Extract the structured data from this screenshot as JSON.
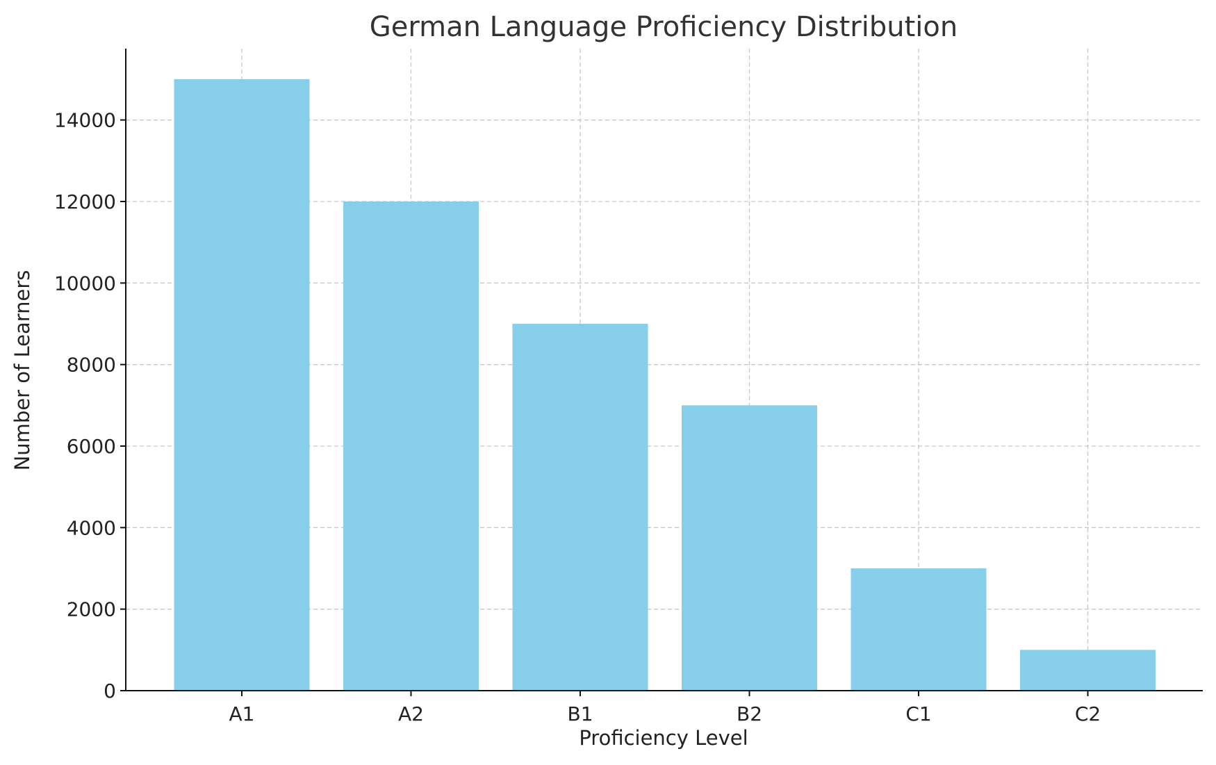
{
  "chart_data": {
    "type": "bar",
    "title": "German Language Proficiency Distribution",
    "xlabel": "Proficiency Level",
    "ylabel": "Number of Learners",
    "categories": [
      "A1",
      "A2",
      "B1",
      "B2",
      "C1",
      "C2"
    ],
    "values": [
      15000,
      12000,
      9000,
      7000,
      3000,
      1000
    ],
    "ylim": [
      0,
      15750
    ],
    "yticks": [
      0,
      2000,
      4000,
      6000,
      8000,
      10000,
      12000,
      14000
    ],
    "grid": true,
    "colors": {
      "bar": "#87CEEB"
    }
  }
}
